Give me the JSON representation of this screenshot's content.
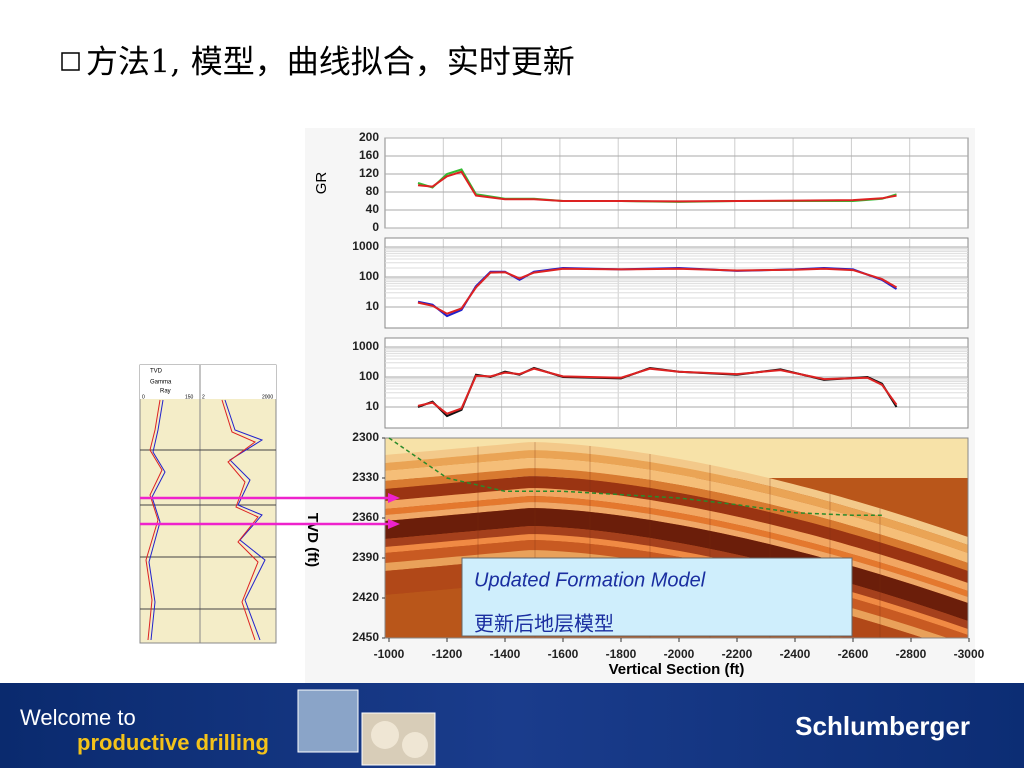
{
  "title": "方法1, 模型，曲线拟合，实时更新",
  "chart_data": [
    {
      "type": "line",
      "ylabel": "GR",
      "x": [
        -1100,
        -1150,
        -1200,
        -1250,
        -1300,
        -1400,
        -1500,
        -1600,
        -1800,
        -2000,
        -2200,
        -2400,
        -2600,
        -2700,
        -2750
      ],
      "xlim": [
        -1000,
        -3000
      ],
      "ylim": [
        0,
        200
      ],
      "yticks": [
        0,
        40,
        80,
        120,
        160,
        200
      ],
      "grid": true,
      "series": [
        {
          "color": "#33bb33",
          "values": [
            100,
            90,
            120,
            130,
            75,
            65,
            65,
            60,
            60,
            58,
            60,
            60,
            60,
            65,
            75
          ]
        },
        {
          "color": "#dd2222",
          "values": [
            95,
            92,
            115,
            125,
            72,
            64,
            64,
            60,
            60,
            59,
            60,
            61,
            62,
            66,
            72
          ]
        }
      ]
    },
    {
      "type": "line",
      "yscale": "log",
      "x": [
        -1100,
        -1150,
        -1200,
        -1250,
        -1300,
        -1350,
        -1400,
        -1450,
        -1500,
        -1600,
        -1800,
        -2000,
        -2200,
        -2400,
        -2500,
        -2600,
        -2700,
        -2750
      ],
      "xlim": [
        -1000,
        -3000
      ],
      "ylim": [
        2,
        2000
      ],
      "yticks": [
        10,
        100,
        1000
      ],
      "grid": true,
      "series": [
        {
          "color": "#2222cc",
          "values": [
            15,
            12,
            5,
            8,
            50,
            150,
            150,
            80,
            150,
            200,
            180,
            200,
            160,
            180,
            200,
            180,
            80,
            40
          ]
        },
        {
          "color": "#dd2222",
          "values": [
            14,
            11,
            6,
            9,
            45,
            140,
            145,
            90,
            140,
            190,
            180,
            190,
            165,
            175,
            190,
            170,
            85,
            45
          ]
        }
      ]
    },
    {
      "type": "line",
      "yscale": "log",
      "x": [
        -1100,
        -1150,
        -1200,
        -1250,
        -1300,
        -1350,
        -1400,
        -1450,
        -1500,
        -1600,
        -1800,
        -1900,
        -2000,
        -2200,
        -2350,
        -2500,
        -2650,
        -2700,
        -2750
      ],
      "xlim": [
        -1000,
        -3000
      ],
      "ylim": [
        2,
        2000
      ],
      "yticks": [
        10,
        100,
        1000
      ],
      "grid": true,
      "series": [
        {
          "color": "#111111",
          "values": [
            10,
            15,
            5,
            8,
            120,
            100,
            150,
            120,
            200,
            100,
            90,
            200,
            150,
            120,
            180,
            80,
            100,
            60,
            10
          ]
        },
        {
          "color": "#dd2222",
          "values": [
            11,
            14,
            6,
            9,
            110,
            105,
            140,
            125,
            190,
            105,
            95,
            190,
            150,
            125,
            170,
            85,
            95,
            55,
            12
          ]
        }
      ]
    },
    {
      "type": "section",
      "ylabel": "TVD (ft)",
      "xlabel": "Vertical Section (ft)",
      "x": [
        -1000,
        -1200,
        -1400,
        -1600,
        -2000,
        -2200,
        -2400,
        -2600,
        -2700
      ],
      "xlim": [
        -1000,
        -3000
      ],
      "xticks": [
        -1000,
        -1200,
        -1400,
        -1600,
        -1800,
        -2000,
        -2200,
        -2400,
        -2600,
        -2800,
        -3000
      ],
      "ylim": [
        2300,
        2450
      ],
      "y_inverted": true,
      "yticks": [
        2300,
        2330,
        2360,
        2390,
        2420,
        2450
      ],
      "series": [
        {
          "color": "#2a8a2a",
          "values": [
            2300,
            2330,
            2340,
            2340,
            2345,
            2350,
            2356,
            2358,
            2358
          ]
        }
      ]
    }
  ],
  "small_log": {
    "tvd": "TVD",
    "gamma": "Gamma",
    "ray": "Ray",
    "scale": [
      "0",
      "150",
      "2",
      "2000"
    ]
  },
  "annotation": {
    "english": "Updated Formation Model",
    "chinese": "更新后地层模型"
  },
  "footer": {
    "welcome": "Welcome to",
    "tagline": "productive drilling",
    "brand": "Schlumberger"
  }
}
